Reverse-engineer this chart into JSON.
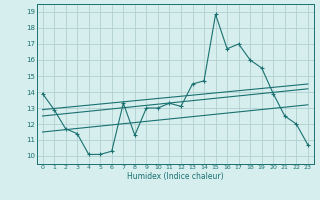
{
  "xlabel": "Humidex (Indice chaleur)",
  "bg_color": "#d6eeee",
  "grid_color": "#b0d0d0",
  "line_color": "#1a7070",
  "xlim": [
    -0.5,
    23.5
  ],
  "ylim": [
    9.5,
    19.5
  ],
  "xticks": [
    0,
    1,
    2,
    3,
    4,
    5,
    6,
    7,
    8,
    9,
    10,
    11,
    12,
    13,
    14,
    15,
    16,
    17,
    18,
    19,
    20,
    21,
    22,
    23
  ],
  "yticks": [
    10,
    11,
    12,
    13,
    14,
    15,
    16,
    17,
    18,
    19
  ],
  "curve1_x": [
    0,
    1,
    2,
    3,
    4,
    5,
    6,
    7,
    8,
    9,
    10,
    11,
    12,
    13,
    14,
    15,
    16,
    17,
    18,
    19,
    20,
    21,
    22,
    23
  ],
  "curve1_y": [
    13.9,
    12.9,
    11.7,
    11.4,
    10.1,
    10.1,
    10.3,
    13.3,
    11.3,
    13.0,
    13.0,
    13.3,
    13.1,
    14.5,
    14.7,
    18.85,
    16.7,
    17.0,
    16.0,
    15.5,
    13.9,
    12.5,
    12.0,
    10.7
  ],
  "line1_x": [
    0,
    23
  ],
  "line1_y": [
    11.5,
    13.2
  ],
  "line2_x": [
    0,
    23
  ],
  "line2_y": [
    12.5,
    14.2
  ],
  "line3_x": [
    0,
    23
  ],
  "line3_y": [
    12.9,
    14.5
  ]
}
